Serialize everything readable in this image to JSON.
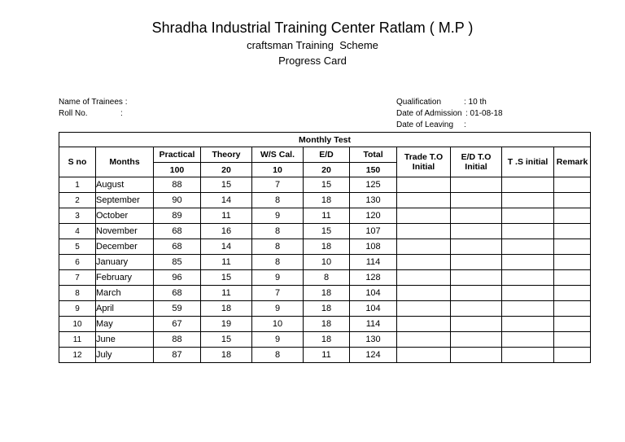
{
  "header": {
    "title": "Shradha Industrial Training Center Ratlam ( M.P )",
    "subtitle": "craftsman Training  Scheme",
    "card": "Progress Card"
  },
  "info": {
    "left": [
      {
        "label": "Name of Trainees :"
      },
      {
        "label": "Roll No.",
        "value": ":"
      }
    ],
    "right": [
      {
        "label": "Qualification",
        "value": ": 10 th"
      },
      {
        "label": "Date of Admission",
        "value": ": 01-08-18"
      },
      {
        "label": "Date of Leaving",
        "value": ":"
      }
    ]
  },
  "table": {
    "group": "Monthly Test",
    "columns": [
      {
        "name": "S no"
      },
      {
        "name": "Months"
      },
      {
        "name": "Practical",
        "max": 100
      },
      {
        "name": "Theory",
        "max": 20
      },
      {
        "name": "W/S Cal.",
        "max": 10
      },
      {
        "name": "E/D",
        "max": 20
      },
      {
        "name": "Total",
        "max": 150
      },
      {
        "name": "Trade T.O Initial"
      },
      {
        "name": "E/D T.O Initial"
      },
      {
        "name": "T .S initial"
      },
      {
        "name": "Remark"
      }
    ],
    "rows": [
      [
        1,
        "August",
        88,
        15,
        7,
        15,
        125
      ],
      [
        2,
        "September",
        90,
        14,
        8,
        18,
        130
      ],
      [
        3,
        "October",
        89,
        11,
        9,
        11,
        120
      ],
      [
        4,
        "November",
        68,
        16,
        8,
        15,
        107
      ],
      [
        5,
        "December",
        68,
        14,
        8,
        18,
        108
      ],
      [
        6,
        "January",
        85,
        11,
        8,
        10,
        114
      ],
      [
        7,
        "February",
        96,
        15,
        9,
        8,
        128
      ],
      [
        8,
        "March",
        68,
        11,
        7,
        18,
        104
      ],
      [
        9,
        "April",
        59,
        18,
        9,
        18,
        104
      ],
      [
        10,
        "May",
        67,
        19,
        10,
        18,
        114
      ],
      [
        11,
        "June",
        88,
        15,
        9,
        18,
        130
      ],
      [
        12,
        "July",
        87,
        18,
        8,
        11,
        124
      ]
    ]
  }
}
